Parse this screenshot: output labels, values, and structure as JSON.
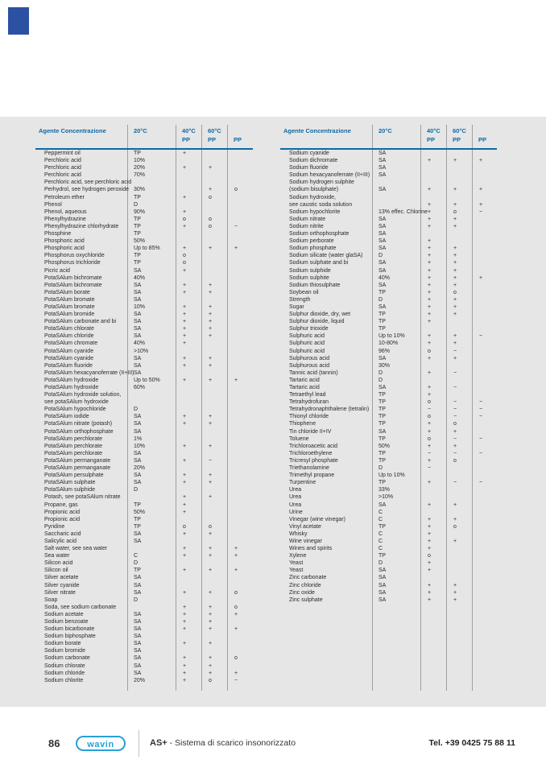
{
  "page": {
    "corner_tab_color": "#2b51a3",
    "panel_background": "#e7e6e6",
    "accent_blue": "#0c6aa6"
  },
  "header": {
    "agent_label": "Agente Concentrazione",
    "columns": [
      {
        "line1": "20°C",
        "line2": ""
      },
      {
        "line1": "40°C",
        "line2": "PP"
      },
      {
        "line1": "60°C",
        "line2": "PP"
      },
      {
        "line1": "",
        "line2": "PP"
      }
    ]
  },
  "tables": [
    {
      "id": "left",
      "rows": [
        [
          "Peppermint oil",
          "TP",
          "+",
          "",
          ""
        ],
        [
          "Perchloric acid",
          "10%",
          "",
          "",
          ""
        ],
        [
          "Perchloric acid",
          "20%",
          "+",
          "+",
          ""
        ],
        [
          "Perchloric acid",
          "70%",
          "",
          "",
          ""
        ],
        [
          "Perchloric acid, see perchloric acid",
          "",
          "",
          "",
          ""
        ],
        [
          "Perhydrol, see hydrogen peroxide",
          "30%",
          "",
          "+",
          "o"
        ],
        [
          "Petroleum ether",
          "TP",
          "+",
          "o",
          ""
        ],
        [
          "Phenol",
          "D",
          "",
          "",
          ""
        ],
        [
          "Phenol, aqueous",
          "90%",
          "+",
          "",
          ""
        ],
        [
          "Phenylhydrazine",
          "TP",
          "o",
          "o",
          ""
        ],
        [
          "Phenylhydrazine chlorhydrate",
          "TP",
          "+",
          "o",
          "−"
        ],
        [
          "Phosphine",
          "TP",
          "",
          "",
          ""
        ],
        [
          "Phosphoric acid",
          "50%",
          "",
          "",
          ""
        ],
        [
          "Phosphoric acid",
          "Up to 85%",
          "+",
          "+",
          "+"
        ],
        [
          "Phosphorus oxychloride",
          "TP",
          "o",
          "",
          ""
        ],
        [
          "Phosphorus trichloride",
          "TP",
          "o",
          "",
          ""
        ],
        [
          "Picric acid",
          "SA",
          "+",
          "",
          ""
        ],
        [
          "PotaSAlum bichromate",
          "40%",
          "",
          "",
          ""
        ],
        [
          "PotaSAlum bichromate",
          "SA",
          "+",
          "+",
          ""
        ],
        [
          "PotaSAlum borate",
          "SA",
          "+",
          "+",
          ""
        ],
        [
          "PotaSAlum bromate",
          "SA",
          "",
          "",
          ""
        ],
        [
          "PotaSAlum bromate",
          "10%",
          "+",
          "+",
          ""
        ],
        [
          "PotaSAlum bromide",
          "SA",
          "+",
          "+",
          ""
        ],
        [
          "PotaSAlum carbonate and bi",
          "SA",
          "+",
          "+",
          ""
        ],
        [
          "PotaSAlum chlorate",
          "SA",
          "+",
          "+",
          ""
        ],
        [
          "PotaSAlum chloride",
          "SA",
          "+",
          "+",
          ""
        ],
        [
          "PotaSAlum chromate",
          "40%",
          "+",
          "",
          ""
        ],
        [
          "PotaSAlum cyanide",
          ">10%",
          "",
          "",
          ""
        ],
        [
          "PotaSAlum cyanide",
          "SA",
          "+",
          "+",
          ""
        ],
        [
          "PotaSAlum fluoride",
          "SA",
          "+",
          "+",
          ""
        ],
        [
          "PotaSAlum hexacyanoferrate (II+III)",
          "SA",
          "",
          "",
          ""
        ],
        [
          "PotaSAlum hydroxide",
          "Up to 50%",
          "+",
          "+",
          "+"
        ],
        [
          "PotaSAlum hydroxide",
          "60%",
          "",
          "",
          ""
        ],
        [
          "PotaSAlum hydroxide solution,",
          "",
          "",
          "",
          ""
        ],
        [
          "see potaSAlum hydroxide",
          "",
          "",
          "",
          ""
        ],
        [
          "PotaSAlum hypochloride",
          "D",
          "",
          "",
          ""
        ],
        [
          "PotaSAlum iodide",
          "SA",
          "+",
          "+",
          ""
        ],
        [
          "PotaSAlum nitrate (potash)",
          "SA",
          "+",
          "+",
          ""
        ],
        [
          "PotaSAlum orthophosphate",
          "SA",
          "",
          "",
          ""
        ],
        [
          "PotaSAlum perchlorate",
          "1%",
          "",
          "",
          ""
        ],
        [
          "PotaSAlum perchlorate",
          "10%",
          "+",
          "+",
          ""
        ],
        [
          "PotaSAlum perchlorate",
          "SA",
          "",
          "",
          ""
        ],
        [
          "PotaSAlum permanganate",
          "SA",
          "+",
          "−",
          ""
        ],
        [
          "PotaSAlum permanganate",
          "20%",
          "",
          "",
          ""
        ],
        [
          "PotaSAlum persulphate",
          "SA",
          "+",
          "+",
          ""
        ],
        [
          "PotaSAlum sulphate",
          "SA",
          "+",
          "+",
          ""
        ],
        [
          "PotaSAlum sulphide",
          "D",
          "",
          "",
          ""
        ],
        [
          "Potash, see potaSAlum nitrate",
          "",
          "+",
          "+",
          ""
        ],
        [
          "Propane, gas",
          "TP",
          "+",
          "",
          ""
        ],
        [
          "Propionic acid",
          "50%",
          "+",
          "",
          ""
        ],
        [
          "Propionic acid",
          "TP",
          "",
          "",
          ""
        ],
        [
          "Pyridine",
          "TP",
          "o",
          "o",
          ""
        ],
        [
          "Saccharic acid",
          "SA",
          "+",
          "+",
          ""
        ],
        [
          "Salicylic acid",
          "SA",
          "",
          "",
          ""
        ],
        [
          "Salt water, see sea water",
          "",
          "+",
          "+",
          "+"
        ],
        [
          "Sea water",
          "C",
          "+",
          "+",
          "+"
        ],
        [
          "Silicon acid",
          "D",
          "",
          "",
          ""
        ],
        [
          "Silicon oil",
          "TP",
          "+",
          "+",
          "+"
        ],
        [
          "Silver acetate",
          "SA",
          "",
          "",
          ""
        ],
        [
          "Silver cyanide",
          "SA",
          "",
          "",
          ""
        ],
        [
          "Silver nitrate",
          "SA",
          "+",
          "+",
          "o"
        ],
        [
          "Soap",
          "D",
          "",
          "",
          ""
        ],
        [
          "Soda, see sodium carbonate",
          "",
          "+",
          "+",
          "o"
        ],
        [
          "Sodium acetate",
          "SA",
          "+",
          "+",
          "+"
        ],
        [
          "Sodium benzoate",
          "SA",
          "+",
          "+",
          ""
        ],
        [
          "Sodium bicarbonate",
          "SA",
          "+",
          "+",
          "+"
        ],
        [
          "Sodium biphosphate",
          "SA",
          "",
          "",
          ""
        ],
        [
          "Sodium borate",
          "SA",
          "+",
          "+",
          ""
        ],
        [
          "Sodium bromide",
          "SA",
          "",
          "",
          ""
        ],
        [
          "Sodium carbonate",
          "SA",
          "+",
          "+",
          "o"
        ],
        [
          "Sodium chlorate",
          "SA",
          "+",
          "+",
          ""
        ],
        [
          "Sodium chloride",
          "SA",
          "+",
          "+",
          "+"
        ],
        [
          "Sodium chlorite",
          "20%",
          "+",
          "o",
          "−"
        ]
      ]
    },
    {
      "id": "right",
      "rows": [
        [
          "Sodium cyanide",
          "SA",
          "",
          "",
          ""
        ],
        [
          "Sodium dichromate",
          "SA",
          "+",
          "+",
          "+"
        ],
        [
          "Sodium fluoride",
          "SA",
          "",
          "",
          ""
        ],
        [
          "Sodium hexacyanoferrate (II+III)",
          "SA",
          "",
          "",
          ""
        ],
        [
          "Sodium hydrogen sulphite",
          "",
          "",
          "",
          ""
        ],
        [
          "(sodium bisulphate)",
          "SA",
          "+",
          "+",
          "+"
        ],
        [
          "Sodium hydroxide,",
          "",
          "",
          "",
          ""
        ],
        [
          "see caustic soda solution",
          "",
          "+",
          "+",
          "+"
        ],
        [
          "Sodium hypochlorite",
          "13% effec. Chlorine",
          "+",
          "o",
          "−"
        ],
        [
          "Sodium nitrate",
          "SA",
          "+",
          "+",
          ""
        ],
        [
          "Sodium nitrite",
          "SA",
          "+",
          "+",
          ""
        ],
        [
          "Sodium orthophosphate",
          "SA",
          "",
          "",
          ""
        ],
        [
          "Sodium perborate",
          "SA",
          "+",
          "",
          ""
        ],
        [
          "Sodium phosphate",
          "SA",
          "+",
          "+",
          ""
        ],
        [
          "Sodium silicate (water glaSA)",
          "D",
          "+",
          "+",
          ""
        ],
        [
          "Sodium sulphate and bi",
          "SA",
          "+",
          "+",
          ""
        ],
        [
          "Sodium sulphide",
          "SA",
          "+",
          "+",
          ""
        ],
        [
          "Sodium sulphite",
          "40%",
          "+",
          "+",
          "+"
        ],
        [
          "Sodium thiosulphate",
          "SA",
          "+",
          "+",
          ""
        ],
        [
          "Soybean oil",
          "TP",
          "+",
          "o",
          ""
        ],
        [
          "Strength",
          "D",
          "+",
          "+",
          ""
        ],
        [
          "Sugar",
          "SA",
          "+",
          "+",
          ""
        ],
        [
          "Sulphur dioxide, dry, wet",
          "TP",
          "+",
          "+",
          ""
        ],
        [
          "Sulphur dioxide, liquid",
          "TP",
          "+",
          "",
          ""
        ],
        [
          "Sulphur trioxide",
          "TP",
          "",
          "",
          ""
        ],
        [
          "Sulphuric acid",
          "Up to 10%",
          "+",
          "+",
          "−"
        ],
        [
          "Sulphuric acid",
          "10-80%",
          "+",
          "+",
          ""
        ],
        [
          "Sulphuric acid",
          "96%",
          "o",
          "−",
          ""
        ],
        [
          "Sulphurous acid",
          "SA",
          "+",
          "+",
          ""
        ],
        [
          "Sulphurous acid",
          "30%",
          "",
          "",
          ""
        ],
        [
          "Tannic acid (tannin)",
          "D",
          "+",
          "−",
          ""
        ],
        [
          "Tartaric acid",
          "D",
          "",
          "",
          ""
        ],
        [
          "Tartaric acid",
          "SA",
          "+",
          "−",
          ""
        ],
        [
          "Tetraethyl lead",
          "TP",
          "+",
          "",
          ""
        ],
        [
          "Tetrahydrofuran",
          "TP",
          "o",
          "−",
          "−"
        ],
        [
          "Tetrahydronaphthalene (tetralin)",
          "TP",
          "−",
          "−",
          "−"
        ],
        [
          "Thionyl chloride",
          "TP",
          "o",
          "−",
          "−"
        ],
        [
          "Thiophene",
          "TP",
          "+",
          "o",
          ""
        ],
        [
          "Tin chloride II+IV",
          "SA",
          "+",
          "+",
          ""
        ],
        [
          "Toluene",
          "TP",
          "o",
          "−",
          "−"
        ],
        [
          "Trichloroacetic acid",
          "50%",
          "+",
          "+",
          ""
        ],
        [
          "Trichloroethylene",
          "TP",
          "−",
          "−",
          "−"
        ],
        [
          "Tricresyl phosphate",
          "TP",
          "+",
          "o",
          ""
        ],
        [
          "Triethanolamine",
          "D",
          "−",
          "",
          ""
        ],
        [
          "Trimethyl propane",
          "Up to 10%",
          "",
          "",
          ""
        ],
        [
          "Turpentine",
          "TP",
          "+",
          "−",
          "−"
        ],
        [
          "Urea",
          "33%",
          "",
          "",
          ""
        ],
        [
          "Urea",
          ">10%",
          "",
          "",
          ""
        ],
        [
          "Urea",
          "SA",
          "+",
          "+",
          ""
        ],
        [
          "Urine",
          "C",
          "",
          "",
          ""
        ],
        [
          "Vinegar (wine vinegar)",
          "C",
          "+",
          "+",
          ""
        ],
        [
          "Vinyl acetate",
          "TP",
          "+",
          "o",
          ""
        ],
        [
          "Whisky",
          "C",
          "+",
          "",
          ""
        ],
        [
          "Wine vinegar",
          "C",
          "+",
          "+",
          ""
        ],
        [
          "Wines and spirits",
          "C",
          "+",
          "",
          ""
        ],
        [
          "Xylene",
          "TP",
          "o",
          "",
          ""
        ],
        [
          "Yeast",
          "D",
          "+",
          "",
          ""
        ],
        [
          "Yeast",
          "SA",
          "+",
          "",
          ""
        ],
        [
          "Zinc carbonate",
          "SA",
          "",
          "",
          ""
        ],
        [
          "Zinc chloride",
          "SA",
          "+",
          "+",
          ""
        ],
        [
          "Zinc oxide",
          "SA",
          "+",
          "+",
          ""
        ],
        [
          "Zinc sulphate",
          "SA",
          "+",
          "+",
          ""
        ]
      ]
    }
  ],
  "footer": {
    "page_number": "86",
    "logo_text": "wavin",
    "product": "AS+",
    "subtitle": "- Sistema di scarico insonorizzato",
    "phone": "Tel. +39 0425 75 88 11"
  }
}
